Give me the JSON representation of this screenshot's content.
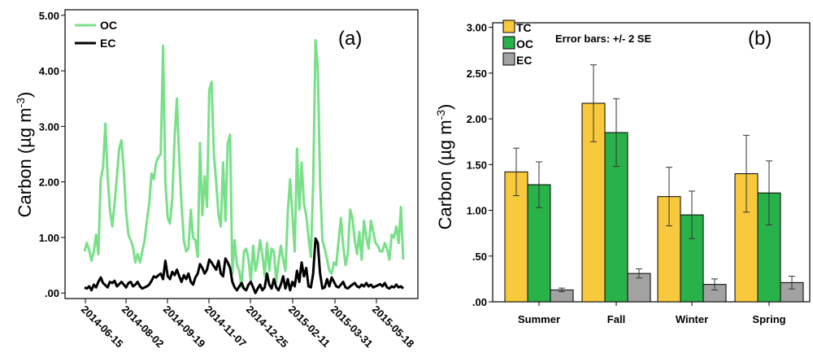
{
  "chart_data": [
    {
      "type": "line",
      "panel_label": "(a)",
      "ylabel_text": "Carbon (µg m",
      "ylabel_sup": "-3",
      "ylabel_close": ")",
      "ylim": [
        -0.1,
        5.1
      ],
      "yticks": [
        {
          "value": 0,
          "label": ".00"
        },
        {
          "value": 1,
          "label": "1.00"
        },
        {
          "value": 2,
          "label": "2.00"
        },
        {
          "value": 3,
          "label": "3.00"
        },
        {
          "value": 4,
          "label": "4.00"
        },
        {
          "value": 5,
          "label": "5.00"
        }
      ],
      "xticks": [
        "2014-06-15",
        "2014-08-02",
        "2014-09-19",
        "2014-11-07",
        "2014-12-25",
        "2015-02-11",
        "2015-03-31",
        "2015-05-18"
      ],
      "grid": false,
      "legend": "top-left",
      "series": [
        {
          "name": "OC",
          "color": "#79e089",
          "values": [
            0.75,
            0.9,
            0.78,
            0.58,
            0.75,
            1.05,
            0.7,
            2.05,
            2.25,
            3.05,
            2.1,
            1.5,
            1.2,
            1.6,
            2.1,
            2.6,
            2.75,
            2.2,
            1.45,
            1.05,
            0.95,
            0.82,
            0.55,
            0.7,
            0.55,
            0.75,
            0.95,
            1.3,
            1.6,
            2.15,
            2.05,
            2.35,
            2.45,
            2.5,
            4.45,
            2.0,
            1.35,
            1.25,
            1.7,
            2.8,
            3.5,
            2.4,
            1.6,
            0.95,
            0.75,
            0.8,
            1.5,
            1.0,
            0.95,
            0.65,
            2.7,
            1.4,
            2.1,
            1.55,
            3.65,
            3.8,
            2.5,
            2.0,
            1.4,
            1.2,
            2.35,
            1.3,
            2.7,
            2.85,
            0.35,
            0.95,
            0.5,
            0.4,
            0.1,
            0.75,
            0.8,
            0.6,
            0.2,
            0.85,
            0.4,
            0.6,
            0.95,
            0.7,
            0.3,
            0.9,
            0.4,
            0.8,
            0.75,
            0.2,
            0.55,
            0.85,
            0.6,
            0.4,
            1.45,
            2.05,
            1.4,
            0.75,
            2.6,
            1.5,
            2.35,
            1.6,
            1.4,
            1.0,
            0.65,
            1.95,
            4.55,
            4.05,
            2.0,
            0.95,
            0.8,
            0.6,
            0.4,
            0.35,
            0.55,
            0.5,
            0.95,
            1.35,
            0.85,
            0.5,
            0.7,
            1.5,
            1.35,
            0.95,
            0.7,
            1.1,
            0.6,
            1.3,
            1.0,
            0.8,
            1.3,
            1.1,
            0.9,
            0.85,
            0.75,
            0.75,
            0.9,
            0.8,
            0.6,
            1.05,
            1.0,
            1.2,
            0.9,
            1.55,
            0.6
          ]
        },
        {
          "name": "EC",
          "color": "#000000",
          "values": [
            0.1,
            0.08,
            0.12,
            0.05,
            0.15,
            0.1,
            0.2,
            0.28,
            0.18,
            0.14,
            0.1,
            0.2,
            0.18,
            0.22,
            0.12,
            0.16,
            0.2,
            0.15,
            0.1,
            0.18,
            0.2,
            0.12,
            0.15,
            0.2,
            0.12,
            0.08,
            0.1,
            0.12,
            0.15,
            0.22,
            0.3,
            0.28,
            0.32,
            0.35,
            0.25,
            0.58,
            0.3,
            0.25,
            0.38,
            0.32,
            0.42,
            0.3,
            0.2,
            0.32,
            0.25,
            0.35,
            0.2,
            0.15,
            0.28,
            0.35,
            0.52,
            0.45,
            0.35,
            0.42,
            0.6,
            0.55,
            0.48,
            0.42,
            0.58,
            0.35,
            0.3,
            0.62,
            0.55,
            0.45,
            0.2,
            0.1,
            0.05,
            0.12,
            0.18,
            0.08,
            0.05,
            0.15,
            0.2,
            0.1,
            0.0,
            0.08,
            0.15,
            0.05,
            0.1,
            0.35,
            0.15,
            0.08,
            0.25,
            0.1,
            0.05,
            0.15,
            0.3,
            0.08,
            0.25,
            0.05,
            0.2,
            0.12,
            0.4,
            0.2,
            0.55,
            0.3,
            0.45,
            0.12,
            0.1,
            0.35,
            0.98,
            0.9,
            0.35,
            0.08,
            0.1,
            0.25,
            0.12,
            0.28,
            0.2,
            0.12,
            0.1,
            0.15,
            0.2,
            0.1,
            0.08,
            0.12,
            0.15,
            0.18,
            0.12,
            0.1,
            0.15,
            0.12,
            0.18,
            0.12,
            0.15,
            0.1,
            0.12,
            0.14,
            0.16,
            0.12,
            0.18,
            0.1,
            0.08,
            0.12,
            0.1,
            0.15,
            0.1,
            0.12,
            0.08
          ]
        }
      ]
    },
    {
      "type": "bar",
      "panel_label": "(b)",
      "ylabel_text": "Carbon (µg m",
      "ylabel_sup": "-3",
      "ylabel_close": ")",
      "annotation": "Error bars: +/- 2 SE",
      "ylim": [
        0,
        3.05
      ],
      "yticks": [
        {
          "value": 0,
          "label": ".00"
        },
        {
          "value": 0.5,
          "label": ".50"
        },
        {
          "value": 1,
          "label": "1.00"
        },
        {
          "value": 1.5,
          "label": "1.50"
        },
        {
          "value": 2,
          "label": "2.00"
        },
        {
          "value": 2.5,
          "label": "2.50"
        },
        {
          "value": 3,
          "label": "3.00"
        }
      ],
      "categories": [
        "Summer",
        "Fall",
        "Winter",
        "Spring"
      ],
      "grid": false,
      "legend": "top-left",
      "series": [
        {
          "name": "TC",
          "color": "#f8c93c",
          "values": [
            1.42,
            2.17,
            1.15,
            1.4
          ],
          "errors": [
            0.26,
            0.42,
            0.32,
            0.42
          ]
        },
        {
          "name": "OC",
          "color": "#2ab24a",
          "values": [
            1.28,
            1.85,
            0.95,
            1.19
          ],
          "errors": [
            0.25,
            0.37,
            0.26,
            0.35
          ]
        },
        {
          "name": "EC",
          "color": "#a2a2a2",
          "values": [
            0.13,
            0.31,
            0.19,
            0.21
          ],
          "errors": [
            0.02,
            0.05,
            0.06,
            0.07
          ]
        }
      ]
    }
  ]
}
